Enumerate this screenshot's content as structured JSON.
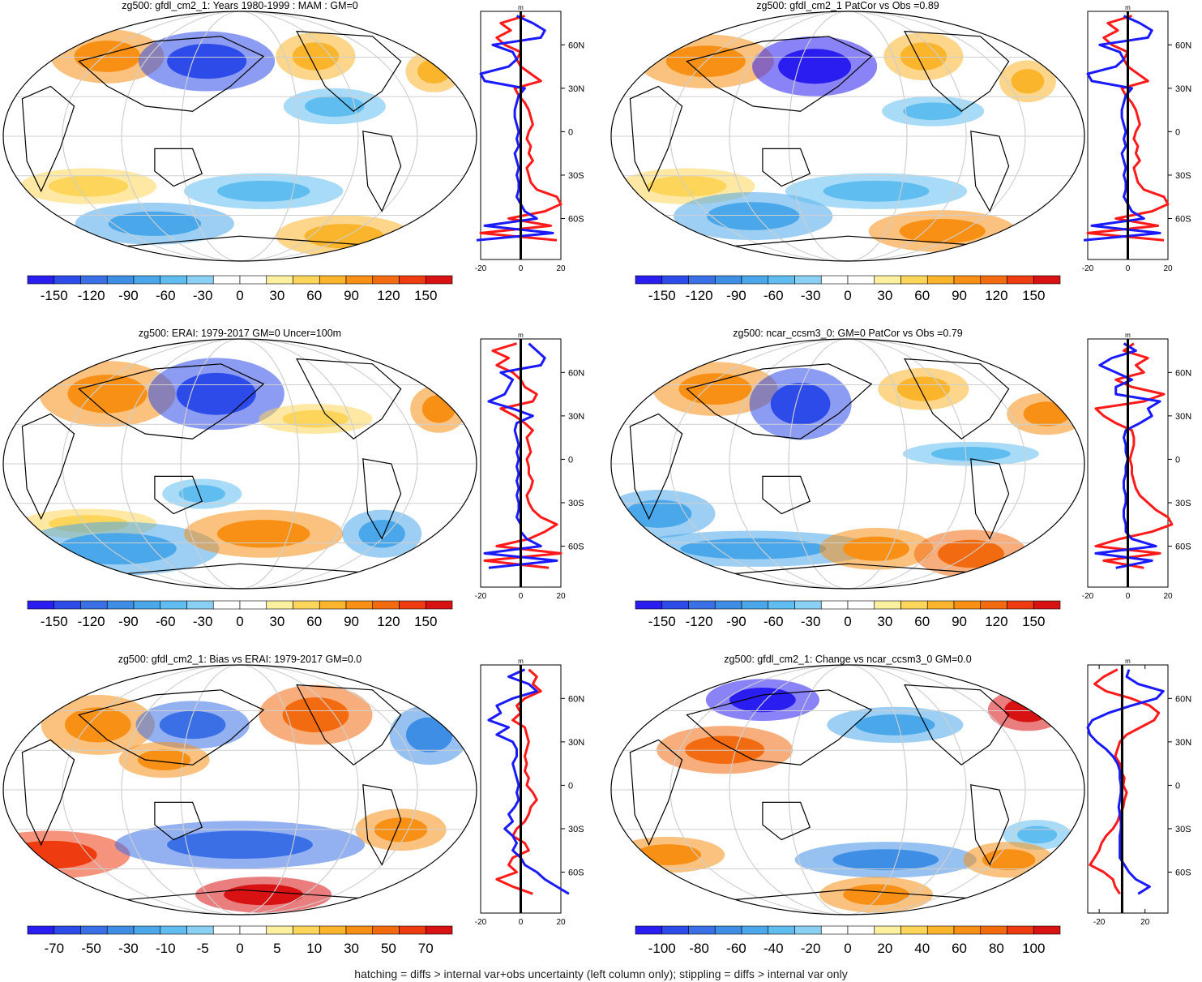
{
  "colors": {
    "scale": [
      "#2a1df0",
      "#2d4be8",
      "#3a6fe6",
      "#3f8ee6",
      "#4aa7ea",
      "#60bdf0",
      "#8ad0f4",
      "#ffffff",
      "#ffffff",
      "#fbf0a0",
      "#fdd55a",
      "#fbb52c",
      "#f79015",
      "#f36b10",
      "#ee3b10",
      "#d81212"
    ],
    "map_bg": "#ffffff",
    "grid": "#cfcfcf",
    "land": "#000000",
    "profile_red": "#ff1a1a",
    "profile_blue": "#1a1aff",
    "profile_black": "#000000"
  },
  "footer": "hatching = diffs > internal var+obs uncertainty (left column only); stippling = diffs > internal var only",
  "chart_data": [
    {
      "type": "heatmap",
      "title": "zg500: gfdl_cm2_1: Years 1980-1999 : MAM : GM=0",
      "colorbar_labels": [
        "-150",
        "-120",
        "-90",
        "-60",
        "-30",
        "0",
        "30",
        "60",
        "90",
        "120",
        "150"
      ],
      "profile": {
        "unit": "m",
        "xticks": [
          "-20",
          "0",
          "20"
        ],
        "yticks": [
          "60N",
          "30N",
          "0",
          "30S",
          "60S"
        ],
        "xlim": [
          -20,
          20
        ],
        "lat": [
          80,
          75,
          70,
          65,
          60,
          55,
          50,
          45,
          40,
          35,
          30,
          25,
          20,
          15,
          10,
          5,
          0,
          -5,
          -10,
          -15,
          -20,
          -25,
          -30,
          -35,
          -40,
          -45,
          -50,
          -55,
          -60,
          -65,
          -70,
          -75
        ],
        "red": [
          2,
          -10,
          -5,
          -12,
          -8,
          0,
          -2,
          0,
          5,
          10,
          -3,
          -1,
          2,
          4,
          5,
          6,
          4,
          3,
          5,
          4,
          6,
          3,
          4,
          5,
          8,
          18,
          20,
          12,
          -6,
          15,
          -20,
          18
        ],
        "blue": [
          -2,
          6,
          12,
          10,
          -14,
          -4,
          -2,
          -6,
          -20,
          -18,
          2,
          -1,
          -2,
          -3,
          -3,
          -2,
          -1,
          -2,
          -1,
          -3,
          -2,
          -1,
          -2,
          -1,
          -1,
          -2,
          0,
          2,
          8,
          -18,
          16,
          -22
        ]
      }
    },
    {
      "type": "heatmap",
      "title": "zg500: gfdl_cm2_1 PatCor vs Obs =0.89",
      "colorbar_labels": [
        "-150",
        "-120",
        "-90",
        "-60",
        "-30",
        "0",
        "30",
        "60",
        "90",
        "120",
        "150"
      ],
      "profile": {
        "unit": "m",
        "xticks": [
          "-20",
          "0",
          "20"
        ],
        "yticks": [
          "60N",
          "30N",
          "0",
          "30S",
          "60S"
        ],
        "xlim": [
          -20,
          20
        ],
        "lat": [
          80,
          75,
          70,
          65,
          60,
          55,
          50,
          45,
          40,
          35,
          30,
          25,
          20,
          15,
          10,
          5,
          0,
          -5,
          -10,
          -15,
          -20,
          -25,
          -30,
          -35,
          -40,
          -45,
          -50,
          -55,
          -60,
          -65,
          -70,
          -75
        ],
        "red": [
          2,
          -10,
          -5,
          -12,
          -8,
          0,
          -2,
          0,
          5,
          10,
          -3,
          -1,
          2,
          4,
          5,
          6,
          4,
          3,
          5,
          4,
          6,
          3,
          4,
          5,
          8,
          18,
          20,
          12,
          -6,
          15,
          -20,
          18
        ],
        "blue": [
          -2,
          6,
          12,
          10,
          -14,
          -4,
          -2,
          -6,
          -20,
          -18,
          2,
          -1,
          -2,
          -3,
          -3,
          -2,
          -1,
          -2,
          -1,
          -3,
          -2,
          -1,
          -2,
          -1,
          -1,
          -2,
          0,
          2,
          8,
          -18,
          16,
          -22
        ]
      }
    },
    {
      "type": "heatmap",
      "title": "zg500: ERAI: 1979-2017 GM=0 Uncer=100m",
      "colorbar_labels": [
        "-150",
        "-120",
        "-90",
        "-60",
        "-30",
        "0",
        "30",
        "60",
        "90",
        "120",
        "150"
      ],
      "profile": {
        "unit": "m",
        "xticks": [
          "-20",
          "0",
          "20"
        ],
        "yticks": [
          "60N",
          "30N",
          "0",
          "30S",
          "60S"
        ],
        "xlim": [
          -20,
          20
        ],
        "lat": [
          80,
          75,
          70,
          65,
          60,
          55,
          50,
          45,
          40,
          35,
          30,
          25,
          20,
          15,
          10,
          5,
          0,
          -5,
          -10,
          -15,
          -20,
          -25,
          -30,
          -35,
          -40,
          -45,
          -50,
          -55,
          -60,
          -65,
          -70,
          -75
        ],
        "red": [
          -2,
          -14,
          -6,
          -12,
          -4,
          0,
          2,
          8,
          6,
          -10,
          -3,
          2,
          6,
          3,
          4,
          5,
          3,
          4,
          4,
          6,
          5,
          3,
          4,
          6,
          10,
          18,
          12,
          4,
          -12,
          20,
          -18,
          14
        ],
        "blue": [
          4,
          8,
          12,
          10,
          -10,
          -4,
          -6,
          -8,
          -16,
          -4,
          6,
          -2,
          -3,
          -2,
          -1,
          -2,
          -1,
          -2,
          -1,
          -2,
          -1,
          -2,
          -1,
          -1,
          -2,
          0,
          0,
          3,
          10,
          -18,
          18,
          -16
        ]
      }
    },
    {
      "type": "heatmap",
      "title": "zg500: ncar_ccsm3_0: GM=0 PatCor vs Obs =0.79",
      "colorbar_labels": [
        "-150",
        "-120",
        "-90",
        "-60",
        "-30",
        "0",
        "30",
        "60",
        "90",
        "120",
        "150"
      ],
      "profile": {
        "unit": "m",
        "xticks": [
          "-20",
          "0",
          "20"
        ],
        "yticks": [
          "60N",
          "30N",
          "0",
          "30S",
          "60S"
        ],
        "xlim": [
          -20,
          20
        ],
        "lat": [
          80,
          75,
          70,
          65,
          60,
          55,
          50,
          45,
          40,
          35,
          30,
          25,
          20,
          15,
          10,
          5,
          0,
          -5,
          -10,
          -15,
          -20,
          -25,
          -30,
          -35,
          -40,
          -45,
          -50,
          -55,
          -60,
          -65,
          -70,
          -75
        ],
        "red": [
          3,
          -2,
          10,
          4,
          8,
          -6,
          2,
          18,
          8,
          -16,
          -12,
          -6,
          2,
          3,
          3,
          2,
          1,
          2,
          2,
          3,
          4,
          6,
          10,
          14,
          20,
          22,
          12,
          -4,
          -16,
          16,
          -12,
          8
        ],
        "blue": [
          -2,
          4,
          -8,
          -14,
          -6,
          2,
          -6,
          -6,
          16,
          10,
          12,
          6,
          -1,
          -2,
          -1,
          -1,
          0,
          -1,
          -1,
          -2,
          -2,
          -1,
          -1,
          -2,
          -2,
          -1,
          -1,
          2,
          14,
          -16,
          12,
          -6
        ]
      }
    },
    {
      "type": "heatmap",
      "title": "zg500: gfdl_cm2_1: Bias vs ERAI: 1979-2017 GM=0.0",
      "colorbar_labels": [
        "-70",
        "-50",
        "-30",
        "-10",
        "-5",
        "0",
        "5",
        "10",
        "30",
        "50",
        "70"
      ],
      "profile": {
        "unit": "m",
        "xticks": [
          "-20",
          "0",
          "20"
        ],
        "yticks": [
          "60N",
          "30N",
          "0",
          "30S",
          "60S"
        ],
        "xlim": [
          -20,
          20
        ],
        "lat": [
          80,
          75,
          70,
          65,
          60,
          55,
          50,
          45,
          40,
          35,
          30,
          25,
          20,
          15,
          10,
          5,
          0,
          -5,
          -10,
          -15,
          -20,
          -25,
          -30,
          -35,
          -40,
          -45,
          -50,
          -55,
          -60,
          -65,
          -70,
          -75
        ],
        "red": [
          4,
          8,
          6,
          10,
          2,
          -2,
          0,
          -4,
          2,
          3,
          4,
          3,
          2,
          3,
          2,
          4,
          3,
          6,
          8,
          5,
          4,
          2,
          -2,
          -4,
          2,
          4,
          -4,
          -6,
          -2,
          -12,
          -4,
          6
        ],
        "blue": [
          2,
          -6,
          4,
          8,
          -4,
          -12,
          -10,
          -16,
          -6,
          -12,
          -4,
          -2,
          -2,
          -4,
          -3,
          -2,
          -1,
          -2,
          -1,
          -3,
          -6,
          -4,
          -8,
          -4,
          -2,
          -4,
          0,
          2,
          8,
          12,
          18,
          24
        ]
      }
    },
    {
      "type": "heatmap",
      "title": "zg500: gfdl_cm2_1: Change vs ncar_ccsm3_0 GM=0.0",
      "colorbar_labels": [
        "-100",
        "-80",
        "-60",
        "-40",
        "-20",
        "0",
        "20",
        "40",
        "60",
        "80",
        "100"
      ],
      "profile": {
        "unit": "m",
        "xticks": [
          "-20",
          "20"
        ],
        "yticks": [
          "60N",
          "30N",
          "0",
          "30S",
          "60S"
        ],
        "xlim": [
          -30,
          40
        ],
        "lat": [
          80,
          75,
          70,
          65,
          60,
          55,
          50,
          45,
          40,
          35,
          30,
          25,
          20,
          15,
          10,
          5,
          0,
          -5,
          -10,
          -15,
          -20,
          -25,
          -30,
          -35,
          -40,
          -45,
          -50,
          -55,
          -60,
          -65,
          -70,
          -75
        ],
        "red": [
          -4,
          -16,
          -24,
          -14,
          8,
          24,
          32,
          28,
          16,
          4,
          -2,
          -4,
          -6,
          -2,
          -1,
          2,
          1,
          4,
          2,
          1,
          -2,
          -4,
          -8,
          -14,
          -18,
          -20,
          -24,
          -28,
          -16,
          -8,
          -6,
          -2
        ],
        "blue": [
          6,
          4,
          14,
          36,
          30,
          8,
          -12,
          -26,
          -30,
          -28,
          -22,
          -14,
          -8,
          -4,
          -2,
          -2,
          -1,
          -1,
          -2,
          -3,
          -2,
          -1,
          -1,
          -2,
          -2,
          -2,
          -2,
          2,
          6,
          12,
          24,
          14
        ]
      }
    }
  ]
}
